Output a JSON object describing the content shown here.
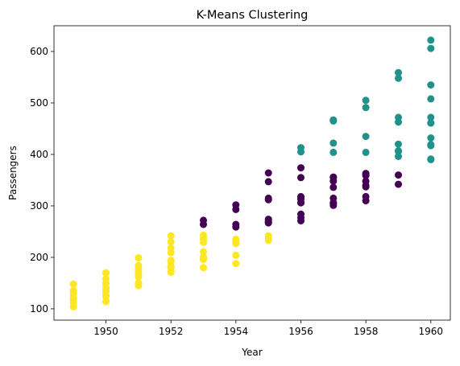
{
  "chart_data": {
    "type": "scatter",
    "title": "K-Means Clustering",
    "xlabel": "Year",
    "ylabel": "Passengers",
    "xlim": [
      1948.4,
      1960.6
    ],
    "ylim": [
      78,
      650
    ],
    "x_ticks": [
      1950,
      1952,
      1954,
      1956,
      1958,
      1960
    ],
    "y_ticks": [
      100,
      200,
      300,
      400,
      500,
      600
    ],
    "grid": false,
    "legend": "none",
    "series": [
      {
        "color": "#fde725",
        "points": [
          [
            1949,
            112
          ],
          [
            1949,
            118
          ],
          [
            1949,
            132
          ],
          [
            1949,
            129
          ],
          [
            1949,
            121
          ],
          [
            1949,
            135
          ],
          [
            1949,
            148
          ],
          [
            1949,
            148
          ],
          [
            1949,
            136
          ],
          [
            1949,
            119
          ],
          [
            1949,
            104
          ],
          [
            1949,
            118
          ],
          [
            1950,
            115
          ],
          [
            1950,
            126
          ],
          [
            1950,
            141
          ],
          [
            1950,
            135
          ],
          [
            1950,
            125
          ],
          [
            1950,
            149
          ],
          [
            1950,
            170
          ],
          [
            1950,
            170
          ],
          [
            1950,
            158
          ],
          [
            1950,
            133
          ],
          [
            1950,
            114
          ],
          [
            1950,
            140
          ],
          [
            1951,
            145
          ],
          [
            1951,
            150
          ],
          [
            1951,
            178
          ],
          [
            1951,
            163
          ],
          [
            1951,
            172
          ],
          [
            1951,
            178
          ],
          [
            1951,
            199
          ],
          [
            1951,
            199
          ],
          [
            1951,
            184
          ],
          [
            1951,
            162
          ],
          [
            1951,
            146
          ],
          [
            1951,
            166
          ],
          [
            1952,
            171
          ],
          [
            1952,
            180
          ],
          [
            1952,
            193
          ],
          [
            1952,
            181
          ],
          [
            1952,
            183
          ],
          [
            1952,
            218
          ],
          [
            1952,
            230
          ],
          [
            1952,
            242
          ],
          [
            1952,
            209
          ],
          [
            1952,
            191
          ],
          [
            1952,
            172
          ],
          [
            1952,
            194
          ],
          [
            1953,
            196
          ],
          [
            1953,
            196
          ],
          [
            1953,
            236
          ],
          [
            1953,
            235
          ],
          [
            1953,
            229
          ],
          [
            1953,
            243
          ],
          [
            1953,
            237
          ],
          [
            1953,
            211
          ],
          [
            1953,
            180
          ],
          [
            1953,
            201
          ],
          [
            1954,
            204
          ],
          [
            1954,
            188
          ],
          [
            1954,
            235
          ],
          [
            1954,
            227
          ],
          [
            1954,
            234
          ],
          [
            1954,
            229
          ],
          [
            1955,
            242
          ],
          [
            1955,
            233
          ],
          [
            1955,
            237
          ]
        ]
      },
      {
        "color": "#440154",
        "points": [
          [
            1953,
            264
          ],
          [
            1953,
            272
          ],
          [
            1954,
            264
          ],
          [
            1954,
            302
          ],
          [
            1954,
            293
          ],
          [
            1954,
            259
          ],
          [
            1955,
            267
          ],
          [
            1955,
            269
          ],
          [
            1955,
            270
          ],
          [
            1955,
            315
          ],
          [
            1955,
            364
          ],
          [
            1955,
            347
          ],
          [
            1955,
            312
          ],
          [
            1955,
            274
          ],
          [
            1956,
            284
          ],
          [
            1956,
            277
          ],
          [
            1956,
            317
          ],
          [
            1956,
            313
          ],
          [
            1956,
            318
          ],
          [
            1956,
            374
          ],
          [
            1956,
            355
          ],
          [
            1956,
            306
          ],
          [
            1956,
            271
          ],
          [
            1956,
            306
          ],
          [
            1957,
            315
          ],
          [
            1957,
            301
          ],
          [
            1957,
            356
          ],
          [
            1957,
            348
          ],
          [
            1957,
            355
          ],
          [
            1957,
            306
          ],
          [
            1957,
            305
          ],
          [
            1957,
            336
          ],
          [
            1958,
            340
          ],
          [
            1958,
            318
          ],
          [
            1958,
            362
          ],
          [
            1958,
            348
          ],
          [
            1958,
            363
          ],
          [
            1958,
            359
          ],
          [
            1958,
            310
          ],
          [
            1958,
            337
          ],
          [
            1959,
            360
          ],
          [
            1959,
            342
          ]
        ]
      },
      {
        "color": "#21918c",
        "points": [
          [
            1956,
            413
          ],
          [
            1956,
            405
          ],
          [
            1957,
            422
          ],
          [
            1957,
            465
          ],
          [
            1957,
            467
          ],
          [
            1957,
            404
          ],
          [
            1958,
            435
          ],
          [
            1958,
            491
          ],
          [
            1958,
            505
          ],
          [
            1958,
            404
          ],
          [
            1959,
            406
          ],
          [
            1959,
            396
          ],
          [
            1959,
            420
          ],
          [
            1959,
            472
          ],
          [
            1959,
            548
          ],
          [
            1959,
            559
          ],
          [
            1959,
            463
          ],
          [
            1959,
            407
          ],
          [
            1960,
            417
          ],
          [
            1960,
            391
          ],
          [
            1960,
            419
          ],
          [
            1960,
            461
          ],
          [
            1960,
            472
          ],
          [
            1960,
            535
          ],
          [
            1960,
            622
          ],
          [
            1960,
            606
          ],
          [
            1960,
            508
          ],
          [
            1960,
            461
          ],
          [
            1960,
            390
          ],
          [
            1960,
            432
          ]
        ]
      }
    ]
  }
}
